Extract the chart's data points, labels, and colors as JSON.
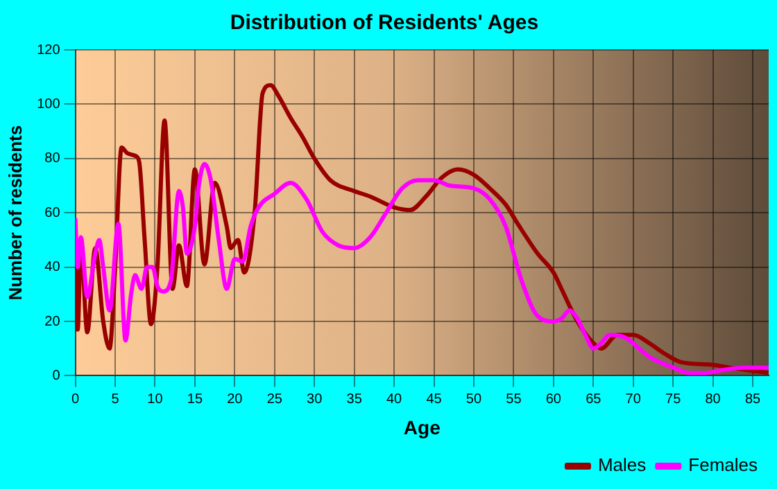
{
  "chart_data": {
    "type": "line",
    "title": "Distribution of Residents' Ages",
    "xlabel": "Age",
    "ylabel": "Number of residents",
    "xlim": [
      0,
      87
    ],
    "xticks": [
      0,
      5,
      10,
      15,
      20,
      25,
      30,
      35,
      40,
      45,
      50,
      55,
      60,
      65,
      70,
      75,
      80,
      85
    ],
    "ylim": [
      0,
      120
    ],
    "yticks": [
      0,
      20,
      40,
      60,
      80,
      100,
      120
    ],
    "grid": true,
    "legend": "bottom right",
    "marker": "none",
    "line_style": "solid",
    "series": [
      {
        "name": "Males",
        "color": "#990000",
        "x": [
          0,
          0.3,
          0.7,
          1.5,
          2.5,
          3.5,
          4.3,
          5,
          5.8,
          6.5,
          7.5,
          8,
          8.7,
          9.5,
          10.3,
          11.2,
          12.2,
          13,
          14,
          15,
          16.2,
          17.5,
          19,
          19.5,
          20.4,
          21.2,
          22.5,
          23.5,
          24.5,
          25.5,
          27,
          28.5,
          30,
          32,
          35,
          37,
          40,
          42,
          44,
          46,
          48,
          50,
          52,
          54,
          55.5,
          58,
          60,
          61,
          63,
          65,
          66,
          68,
          70,
          72,
          74,
          76,
          80,
          82,
          87
        ],
        "values": [
          55,
          17,
          48,
          16,
          47,
          20,
          10,
          40,
          84,
          82,
          81,
          79,
          50,
          19,
          40,
          94,
          32,
          48,
          33,
          76,
          41,
          71,
          55,
          47,
          50,
          38,
          60,
          104,
          107,
          103,
          95,
          88,
          80,
          72,
          68,
          66,
          62,
          61,
          66,
          73,
          76,
          74,
          69,
          63,
          56,
          45,
          38,
          32,
          20,
          12,
          10,
          15,
          15,
          12,
          8,
          5,
          4,
          3,
          1
        ]
      },
      {
        "name": "Females",
        "color": "#ff00ff",
        "x": [
          0,
          0.3,
          0.7,
          1.5,
          2.5,
          3,
          3.5,
          4.3,
          5.4,
          6.3,
          7,
          7.5,
          8.3,
          9,
          9.7,
          10.3,
          11,
          12,
          13,
          13.5,
          14,
          15,
          15.5,
          16.2,
          17,
          18,
          19,
          20,
          21,
          22,
          23,
          25,
          27,
          29,
          31,
          33,
          35,
          37,
          39,
          41,
          43,
          45,
          47,
          50,
          52,
          54,
          56,
          58,
          60,
          61,
          62,
          63,
          64,
          65,
          66,
          67,
          69,
          72,
          75,
          77,
          79,
          81,
          84,
          87
        ],
        "values": [
          58,
          40,
          51,
          29,
          45,
          50,
          40,
          24,
          56,
          13,
          30,
          37,
          32,
          40,
          40,
          33,
          31,
          35,
          68,
          62,
          45,
          55,
          70,
          78,
          72,
          50,
          32,
          43,
          42,
          55,
          62,
          67,
          71,
          65,
          53,
          48,
          47,
          51,
          60,
          69,
          72,
          72,
          70,
          69,
          65,
          55,
          35,
          22,
          20,
          21,
          24,
          21,
          15,
          10,
          12,
          15,
          14,
          7,
          3,
          1,
          1,
          2,
          3,
          3
        ]
      }
    ]
  }
}
